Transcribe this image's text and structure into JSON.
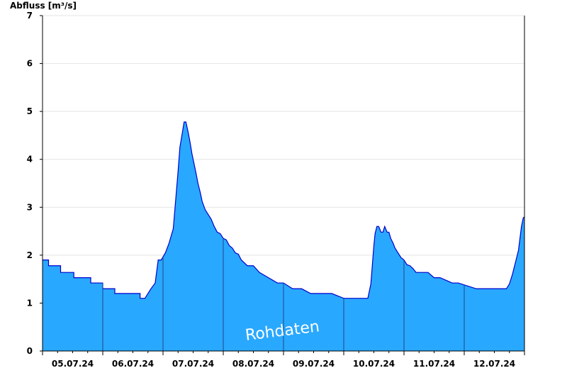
{
  "chart_data": {
    "type": "area",
    "title": "",
    "xlabel": "",
    "ylabel": "Abfluss [m³/s]",
    "ylim": [
      0,
      7
    ],
    "y_ticks": [
      0,
      1,
      2,
      3,
      4,
      5,
      6,
      7
    ],
    "x_range_days": [
      0,
      8
    ],
    "x_ticks": [
      "05.07.24",
      "06.07.24",
      "07.07.24",
      "08.07.24",
      "09.07.24",
      "10.07.24",
      "11.07.24",
      "12.07.24"
    ],
    "grid": "horizontal",
    "watermark": "Rohdaten",
    "colors": {
      "fill": "#29a8ff",
      "line": "#0000cc"
    },
    "series": [
      {
        "x": [
          0.0,
          0.1,
          0.1,
          0.3,
          0.3,
          0.52,
          0.52,
          0.8,
          0.8,
          1.0,
          1.0,
          1.2,
          1.2,
          1.62,
          1.62,
          1.65,
          1.7,
          1.75,
          1.8,
          1.87,
          1.92,
          1.97,
          2.04,
          2.1,
          2.17,
          2.25,
          2.28,
          2.32,
          2.35,
          2.38,
          2.42,
          2.45,
          2.48,
          2.52,
          2.55,
          2.58,
          2.62,
          2.65,
          2.7,
          2.75,
          2.8,
          2.85,
          2.9,
          2.95,
          3.0,
          3.05,
          3.1,
          3.15,
          3.2,
          3.25,
          3.3,
          3.4,
          3.5,
          3.6,
          3.75,
          3.9,
          4.0,
          4.15,
          4.3,
          4.45,
          4.6,
          4.8,
          5.0,
          5.2,
          5.4,
          5.45,
          5.5,
          5.52,
          5.55,
          5.58,
          5.62,
          5.65,
          5.68,
          5.72,
          5.75,
          5.78,
          5.82,
          5.85,
          5.9,
          5.95,
          6.0,
          6.05,
          6.1,
          6.15,
          6.2,
          6.25,
          6.3,
          6.4,
          6.5,
          6.6,
          6.8,
          6.9,
          7.2,
          7.5,
          7.6,
          7.65,
          7.7,
          7.75,
          7.8,
          7.83,
          7.86,
          7.9,
          7.93,
          7.95,
          7.98,
          8.0
        ],
        "y": [
          1.9,
          1.9,
          1.78,
          1.78,
          1.64,
          1.64,
          1.53,
          1.53,
          1.42,
          1.42,
          1.3,
          1.3,
          1.2,
          1.2,
          1.1,
          1.1,
          1.1,
          1.2,
          1.3,
          1.42,
          1.9,
          1.9,
          2.05,
          2.25,
          2.55,
          3.75,
          4.25,
          4.55,
          4.78,
          4.78,
          4.55,
          4.35,
          4.12,
          3.88,
          3.7,
          3.5,
          3.3,
          3.12,
          2.95,
          2.85,
          2.75,
          2.6,
          2.48,
          2.45,
          2.35,
          2.32,
          2.2,
          2.15,
          2.05,
          2.02,
          1.9,
          1.78,
          1.78,
          1.64,
          1.53,
          1.42,
          1.42,
          1.3,
          1.3,
          1.2,
          1.2,
          1.2,
          1.1,
          1.1,
          1.1,
          1.4,
          2.2,
          2.45,
          2.6,
          2.6,
          2.48,
          2.48,
          2.6,
          2.48,
          2.48,
          2.35,
          2.25,
          2.15,
          2.05,
          1.95,
          1.9,
          1.8,
          1.78,
          1.72,
          1.64,
          1.64,
          1.64,
          1.64,
          1.53,
          1.53,
          1.42,
          1.42,
          1.3,
          1.3,
          1.3,
          1.3,
          1.3,
          1.4,
          1.6,
          1.75,
          1.9,
          2.1,
          2.4,
          2.6,
          2.78,
          2.8
        ]
      }
    ]
  }
}
